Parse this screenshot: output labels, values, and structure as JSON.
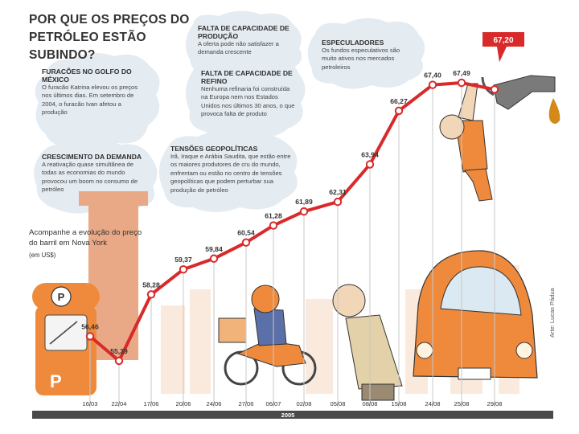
{
  "title": "POR QUE OS PREÇOS DO PETRÓLEO ESTÃO SUBINDO?",
  "notes": {
    "furacoes": {
      "head": "FURACÕES NO GOLFO DO MÉXICO",
      "body": "O furacão Katrina elevou os preços nos últimos dias. Em setembro de 2004, o furacão Ivan afetou a produção"
    },
    "demanda": {
      "head": "CRESCIMENTO DA DEMANDA",
      "body": "A reativação quase simultânea de todas as economias do mundo provocou um boom no consumo de petróleo"
    },
    "producao": {
      "head": "FALTA DE CAPACIDADE DE PRODUÇÃO",
      "body": "A oferta pode não satisfazer a demanda crescente"
    },
    "refino": {
      "head": "FALTA DE CAPACIDADE DE REFINO",
      "body": "Nenhuma refinaria foi construída na Europa nem nos Estados Unidos nos últimos 30 anos, o que provoca falta de produto"
    },
    "tensoes": {
      "head": "TENSÕES GEOPOLÍTICAS",
      "body": "Irã, Iraque e Arábia Saudita, que estão entre os maiores produtores de cru do mundo, enfrentam ou estão no centro de tensões geopolíticas que podem perturbar sua produção de petróleo"
    },
    "especuladores": {
      "head": "ESPECULADORES",
      "body": "Os fundos especulativos são muito ativos nos mercados petroleiros"
    }
  },
  "caption": {
    "text": "Acompanhe a evolução do preço do barril em Nova York",
    "unit": "(em US$)"
  },
  "credit": "Arte: Lucas Pádua",
  "pump_letter": "P",
  "colors": {
    "line": "#d82a2a",
    "bubble": "#e4ebf1",
    "orange": "#ef8a3c",
    "timeline": "#4a4a4a"
  },
  "chart_data": {
    "type": "line",
    "x": [
      "16/03",
      "22/04",
      "17/06",
      "20/06",
      "24/06",
      "27/06",
      "06/07",
      "02/08",
      "05/08",
      "08/08",
      "15/08",
      "24/08",
      "25/08",
      "29/08"
    ],
    "series": [
      {
        "values": [
          56.46,
          55.39,
          58.28,
          59.37,
          59.84,
          60.54,
          61.28,
          61.89,
          62.31,
          63.94,
          66.27,
          67.4,
          67.49,
          67.2
        ]
      }
    ],
    "value_labels": [
      "56,46",
      "55,39",
      "58,28",
      "59,37",
      "59,84",
      "60,54",
      "61,28",
      "61,89",
      "62,31",
      "63,94",
      "66,27",
      "67,40",
      "67,49",
      "67,20"
    ],
    "xlabel": "2005",
    "highlight": {
      "label": "67,20"
    }
  }
}
